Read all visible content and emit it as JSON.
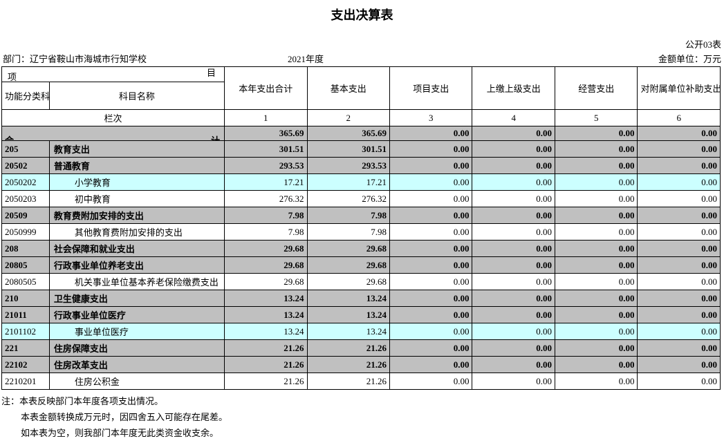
{
  "title": "支出决算表",
  "form_no": "公开03表",
  "dept_label": "部门：",
  "dept_name": "辽宁省鞍山市海城市行知学校",
  "year": "2021年度",
  "unit_label": "金额单位：万元",
  "header": {
    "item_left": "项",
    "item_right": "目",
    "code": "功能分类科目编码",
    "name": "科目名称",
    "seq": "栏次",
    "cols": [
      "本年支出合计",
      "基本支出",
      "项目支出",
      "上缴上级支出",
      "经营支出",
      "对附属单位补助支出"
    ],
    "seq_nums": [
      "1",
      "2",
      "3",
      "4",
      "5",
      "6"
    ]
  },
  "total_label": "合",
  "total_label2": "计",
  "rows": [
    {
      "code": "",
      "name": "",
      "v": [
        "365.69",
        "365.69",
        "0.00",
        "0.00",
        "0.00",
        "0.00"
      ],
      "bold": true,
      "bg": "gray",
      "total": true
    },
    {
      "code": "205",
      "name": "教育支出",
      "v": [
        "301.51",
        "301.51",
        "0.00",
        "0.00",
        "0.00",
        "0.00"
      ],
      "bold": true,
      "bg": "gray"
    },
    {
      "code": "20502",
      "name": "普通教育",
      "v": [
        "293.53",
        "293.53",
        "0.00",
        "0.00",
        "0.00",
        "0.00"
      ],
      "bold": true,
      "bg": "gray"
    },
    {
      "code": "2050202",
      "name": "小学教育",
      "v": [
        "17.21",
        "17.21",
        "0.00",
        "0.00",
        "0.00",
        "0.00"
      ],
      "bg": "cyan",
      "indent": 2
    },
    {
      "code": "2050203",
      "name": "初中教育",
      "v": [
        "276.32",
        "276.32",
        "0.00",
        "0.00",
        "0.00",
        "0.00"
      ],
      "indent": 2
    },
    {
      "code": "20509",
      "name": "教育费附加安排的支出",
      "v": [
        "7.98",
        "7.98",
        "0.00",
        "0.00",
        "0.00",
        "0.00"
      ],
      "bold": true,
      "bg": "gray"
    },
    {
      "code": "2050999",
      "name": "其他教育费附加安排的支出",
      "v": [
        "7.98",
        "7.98",
        "0.00",
        "0.00",
        "0.00",
        "0.00"
      ],
      "indent": 2
    },
    {
      "code": "208",
      "name": "社会保障和就业支出",
      "v": [
        "29.68",
        "29.68",
        "0.00",
        "0.00",
        "0.00",
        "0.00"
      ],
      "bold": true,
      "bg": "gray"
    },
    {
      "code": "20805",
      "name": "行政事业单位养老支出",
      "v": [
        "29.68",
        "29.68",
        "0.00",
        "0.00",
        "0.00",
        "0.00"
      ],
      "bold": true,
      "bg": "gray"
    },
    {
      "code": "2080505",
      "name": "机关事业单位基本养老保险缴费支出",
      "v": [
        "29.68",
        "29.68",
        "0.00",
        "0.00",
        "0.00",
        "0.00"
      ],
      "indent": 2
    },
    {
      "code": "210",
      "name": "卫生健康支出",
      "v": [
        "13.24",
        "13.24",
        "0.00",
        "0.00",
        "0.00",
        "0.00"
      ],
      "bold": true,
      "bg": "gray"
    },
    {
      "code": "21011",
      "name": "行政事业单位医疗",
      "v": [
        "13.24",
        "13.24",
        "0.00",
        "0.00",
        "0.00",
        "0.00"
      ],
      "bold": true,
      "bg": "gray"
    },
    {
      "code": "2101102",
      "name": "事业单位医疗",
      "v": [
        "13.24",
        "13.24",
        "0.00",
        "0.00",
        "0.00",
        "0.00"
      ],
      "bg": "cyan",
      "indent": 2
    },
    {
      "code": "221",
      "name": "住房保障支出",
      "v": [
        "21.26",
        "21.26",
        "0.00",
        "0.00",
        "0.00",
        "0.00"
      ],
      "bold": true,
      "bg": "gray"
    },
    {
      "code": "22102",
      "name": "住房改革支出",
      "v": [
        "21.26",
        "21.26",
        "0.00",
        "0.00",
        "0.00",
        "0.00"
      ],
      "bold": true,
      "bg": "gray"
    },
    {
      "code": "2210201",
      "name": "住房公积金",
      "v": [
        "21.26",
        "21.26",
        "0.00",
        "0.00",
        "0.00",
        "0.00"
      ],
      "indent": 2
    }
  ],
  "notes": [
    "注：本表反映部门本年度各项支出情况。",
    "本表金额转换成万元时，因四舍五入可能存在尾差。",
    "如本表为空，则我部门本年度无此类资金收支余。"
  ]
}
